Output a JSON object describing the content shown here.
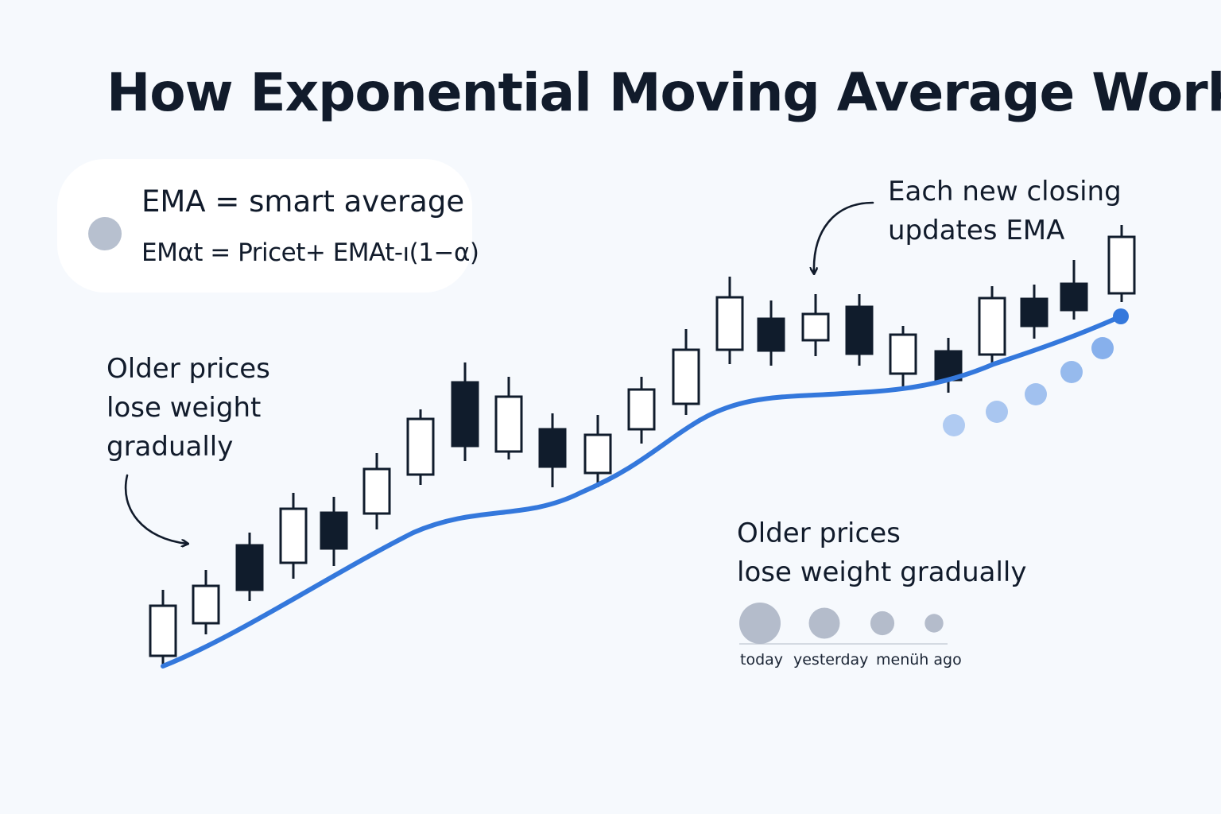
{
  "title": "How Exponential Moving Average Works",
  "formula_card": {
    "heading": "EMA = smart average",
    "formula": "EMαt = Pricet+ EMAt-ı(1−α)"
  },
  "notes": {
    "left": [
      "Older prices",
      "lose weight",
      "gradually"
    ],
    "right": [
      "Each new closing",
      "updates EMA"
    ],
    "weights": [
      "Older prices",
      "lose weight gradually"
    ]
  },
  "weight_labels": {
    "today": "today",
    "yesterday": "yesterday",
    "ago": "menüh ago"
  },
  "weights": [
    1.0,
    0.75,
    0.58,
    0.45
  ],
  "candles": [
    {
      "bull": true
    },
    {
      "bull": true
    },
    {
      "bull": false
    },
    {
      "bull": true
    },
    {
      "bull": false
    },
    {
      "bull": true
    },
    {
      "bull": true
    },
    {
      "bull": false
    },
    {
      "bull": true
    },
    {
      "bull": false
    },
    {
      "bull": true
    },
    {
      "bull": true
    },
    {
      "bull": true
    },
    {
      "bull": true
    },
    {
      "bull": false
    },
    {
      "bull": true
    },
    {
      "bull": false
    },
    {
      "bull": true
    },
    {
      "bull": false
    },
    {
      "bull": true
    },
    {
      "bull": false
    },
    {
      "bull": false
    },
    {
      "bull": true
    }
  ],
  "colors": {
    "text": "#111b2b",
    "background": "#f6f9fd",
    "card": "#ffffff",
    "bull_candle": "#ffffff",
    "bear_candle": "#101c2c",
    "ema_line": "#3478dc",
    "projection_dots": "#5b93e4",
    "weight_dots": "#b4bccb",
    "formula_dot": "#b7c0cf",
    "axis_line": "#c8cfda"
  }
}
